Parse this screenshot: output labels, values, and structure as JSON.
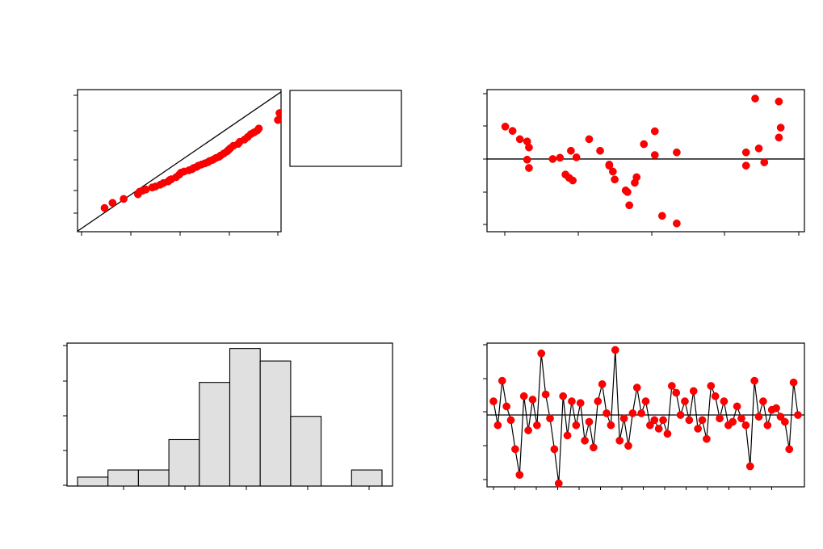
{
  "chart_data": [
    {
      "name": "normal-probability-plot",
      "type": "scatter",
      "title": "",
      "xlabel": "",
      "ylabel": "",
      "xlim": [
        -3.2,
        3.2
      ],
      "ylim": [
        1.0,
        99.5
      ],
      "x": [
        -2.35,
        -2.1,
        -1.75,
        -1.3,
        -1.25,
        -1.15,
        -1.05,
        -0.85,
        -0.75,
        -0.6,
        -0.5,
        -0.35,
        -0.3,
        -0.25,
        -0.1,
        0.0,
        0.05,
        0.15,
        0.3,
        0.4,
        0.45,
        0.55,
        0.6,
        0.7,
        0.8,
        0.9,
        0.95,
        1.05,
        1.15,
        1.25,
        1.3,
        1.4,
        1.5,
        1.55,
        1.6,
        1.7,
        1.85,
        1.9,
        2.05,
        2.15,
        2.25,
        2.35,
        2.45,
        2.5,
        3.1,
        3.15
      ],
      "y": [
        5,
        7,
        9,
        12,
        14,
        15,
        16,
        18,
        19,
        21,
        23,
        25,
        27,
        28,
        31,
        35,
        38,
        40,
        42,
        44,
        46,
        48,
        50,
        52,
        54,
        56,
        58,
        60,
        63,
        65,
        67,
        70,
        73,
        75,
        77,
        80,
        82,
        84,
        86,
        88,
        90,
        91,
        92,
        93,
        96,
        97.5
      ],
      "reference_line": {
        "x": [
          -3.2,
          3.2
        ],
        "y": [
          1.2,
          99.5
        ]
      },
      "legend_box": true
    },
    {
      "name": "residuals-vs-fits",
      "type": "scatter",
      "title": "",
      "xlabel": "",
      "ylabel": "",
      "xlim": [
        -0.5,
        8.2
      ],
      "ylim": [
        -2.2,
        2.1
      ],
      "x": [
        0,
        0.2,
        0.4,
        0.6,
        0.65,
        0.6,
        0.65,
        1.3,
        1.5,
        1.65,
        1.75,
        1.8,
        1.85,
        1.95,
        2.3,
        2.6,
        2.85,
        2.85,
        2.95,
        3.0,
        3.3,
        3.35,
        3.4,
        3.55,
        3.6,
        3.8,
        4.1,
        4.1,
        4.3,
        4.7,
        4.7,
        6.6,
        6.6,
        6.85,
        6.95,
        7.1,
        7.5,
        7.5,
        7.55
      ],
      "y": [
        0.98,
        0.85,
        0.6,
        0.53,
        0.35,
        -0.02,
        -0.27,
        0.0,
        0.04,
        -0.47,
        -0.57,
        0.25,
        -0.65,
        0.05,
        0.6,
        0.25,
        -0.17,
        -0.2,
        -0.38,
        -0.62,
        -0.95,
        -1.0,
        -1.4,
        -0.72,
        -0.55,
        0.45,
        0.84,
        0.12,
        -1.72,
        -1.95,
        0.2,
        0.2,
        -0.2,
        1.83,
        0.32,
        -0.1,
        0.65,
        1.74,
        0.95
      ]
    },
    {
      "name": "histogram",
      "type": "bar",
      "title": "",
      "xlabel": "",
      "ylabel": "",
      "ylim": [
        0,
        8
      ],
      "values": [
        0.5,
        0.9,
        0.9,
        2.6,
        5.8,
        7.7,
        7.0,
        3.9,
        0,
        0.9
      ]
    },
    {
      "name": "residuals-vs-order",
      "type": "line",
      "title": "",
      "xlabel": "",
      "ylabel": "",
      "ylim": [
        -2.1,
        2.1
      ],
      "values": [
        0.4,
        -0.3,
        1.0,
        0.25,
        -0.15,
        -1.0,
        -1.75,
        0.55,
        -0.45,
        0.45,
        -0.3,
        1.8,
        0.6,
        -0.1,
        -1.0,
        -2.0,
        0.55,
        -0.6,
        0.4,
        -0.3,
        0.35,
        -0.75,
        -0.2,
        -0.95,
        0.4,
        0.9,
        0.05,
        -0.3,
        1.9,
        -0.75,
        -0.1,
        -0.9,
        0.05,
        0.8,
        0.05,
        0.4,
        -0.3,
        -0.15,
        -0.4,
        -0.15,
        -0.55,
        0.85,
        0.65,
        0.0,
        0.4,
        -0.15,
        0.7,
        -0.4,
        -0.15,
        -0.7,
        0.85,
        0.55,
        -0.1,
        0.4,
        -0.3,
        -0.2,
        0.25,
        -0.1,
        -0.3,
        -1.5,
        1.0,
        -0.05,
        0.4,
        -0.3,
        0.15,
        0.2,
        -0.05,
        -0.2,
        -1.0,
        0.95,
        0.0
      ]
    }
  ]
}
